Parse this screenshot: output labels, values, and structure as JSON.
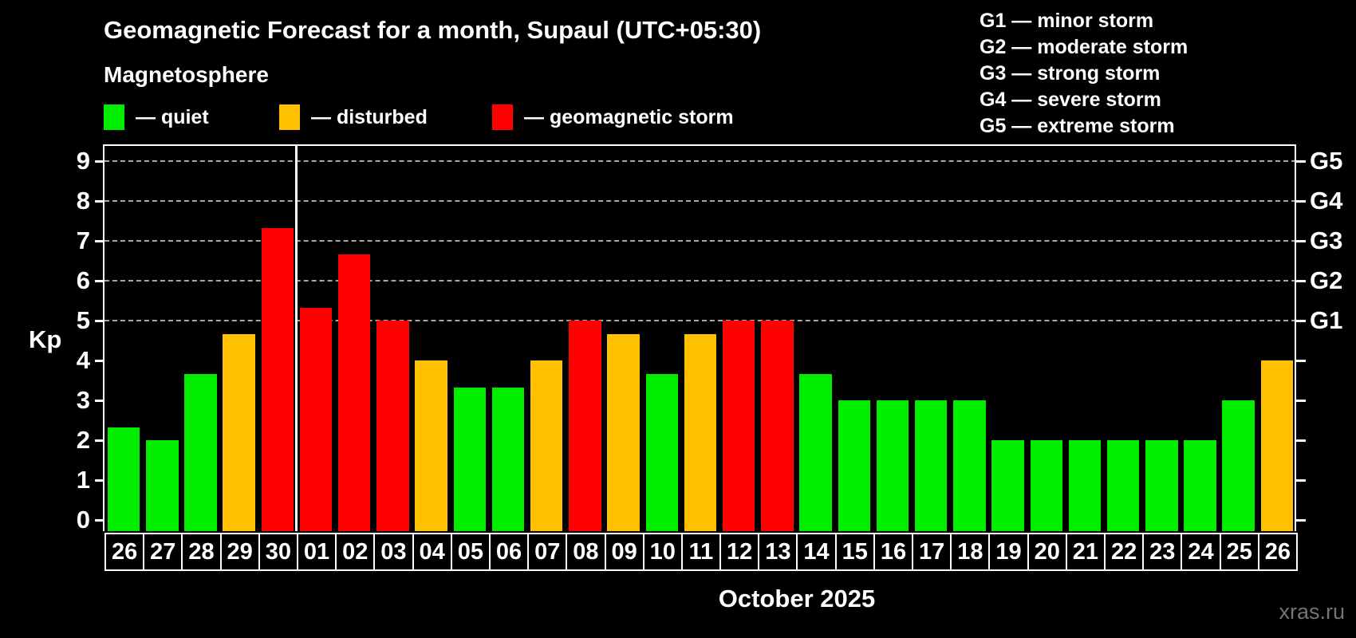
{
  "header": {
    "title": "Geomagnetic Forecast for a month, Supaul (UTC+05:30)",
    "subtitle": "Magnetosphere"
  },
  "legend": {
    "items": [
      {
        "key": "quiet",
        "label": "— quiet",
        "color": "#00ed00"
      },
      {
        "key": "disturbed",
        "label": "— disturbed",
        "color": "#ffc000"
      },
      {
        "key": "storm",
        "label": "— geomagnetic storm",
        "color": "#ff0000"
      }
    ]
  },
  "g_legend": {
    "items": [
      "G1 — minor storm",
      "G2 — moderate storm",
      "G3 — strong storm",
      "G4 — severe storm",
      "G5 — extreme storm"
    ]
  },
  "axis": {
    "ylabel": "Kp",
    "xlabel": "October 2025"
  },
  "watermark": "xras.ru",
  "chart_data": {
    "type": "bar",
    "title": "Geomagnetic Forecast for a month, Supaul (UTC+05:30)",
    "subtitle": "Magnetosphere",
    "xlabel": "October 2025",
    "ylabel": "Kp",
    "ylim": [
      0,
      9.4
    ],
    "yticks": [
      0,
      1,
      2,
      3,
      4,
      5,
      6,
      7,
      8,
      9
    ],
    "gridline_values": [
      5,
      6,
      7,
      8,
      9
    ],
    "grid": "horizontal dashed lines at Kp 5 through 9 only",
    "legend_position": "top-left",
    "categories": [
      "26",
      "27",
      "28",
      "29",
      "30",
      "01",
      "02",
      "03",
      "04",
      "05",
      "06",
      "07",
      "08",
      "09",
      "10",
      "11",
      "12",
      "13",
      "14",
      "15",
      "16",
      "17",
      "18",
      "19",
      "20",
      "21",
      "22",
      "23",
      "24",
      "25",
      "26"
    ],
    "values": [
      2.33,
      2,
      3.67,
      4.67,
      7.33,
      5.33,
      6.67,
      5,
      4,
      3.33,
      3.33,
      4,
      5,
      4.67,
      3.67,
      4.67,
      5,
      5,
      3.67,
      3,
      3,
      3,
      3,
      2,
      2,
      2,
      2,
      2,
      2,
      3,
      4
    ],
    "statuses": [
      "quiet",
      "quiet",
      "quiet",
      "disturbed",
      "storm",
      "storm",
      "storm",
      "storm",
      "disturbed",
      "quiet",
      "quiet",
      "disturbed",
      "storm",
      "disturbed",
      "quiet",
      "disturbed",
      "storm",
      "storm",
      "quiet",
      "quiet",
      "quiet",
      "quiet",
      "quiet",
      "quiet",
      "quiet",
      "quiet",
      "quiet",
      "quiet",
      "quiet",
      "quiet",
      "disturbed"
    ],
    "colors": {
      "quiet": "#00ed00",
      "disturbed": "#ffc000",
      "storm": "#ff0000"
    },
    "month_separator_after_index": 4,
    "right_axis_labels": [
      {
        "label": "G1",
        "value": 5
      },
      {
        "label": "G2",
        "value": 6
      },
      {
        "label": "G3",
        "value": 7
      },
      {
        "label": "G4",
        "value": 8
      },
      {
        "label": "G5",
        "value": 9
      }
    ]
  }
}
